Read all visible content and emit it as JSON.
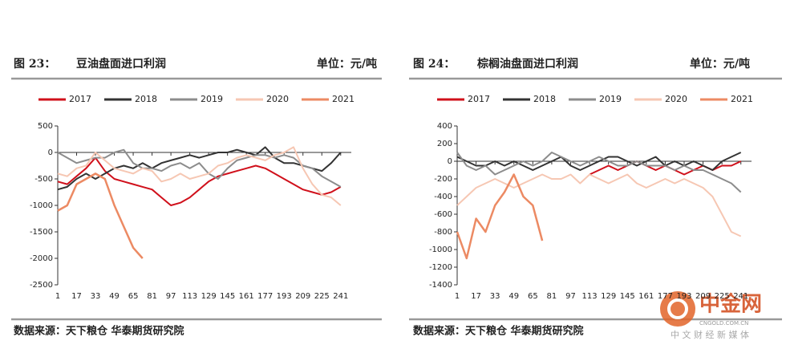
{
  "chart_data": [
    {
      "type": "line",
      "figure_label": "图 23：",
      "title": "豆油盘面进口利润",
      "unit": "单位：元/吨",
      "source": "数据来源：天下粮仓  华泰期货研究院",
      "x": [
        1,
        9,
        17,
        25,
        33,
        41,
        49,
        57,
        65,
        73,
        81,
        89,
        97,
        105,
        113,
        121,
        129,
        137,
        145,
        153,
        161,
        169,
        177,
        185,
        193,
        201,
        209,
        217,
        225,
        233,
        241,
        249
      ],
      "xlim": [
        1,
        250
      ],
      "xticks": [
        1,
        17,
        33,
        49,
        65,
        81,
        97,
        113,
        129,
        145,
        161,
        177,
        193,
        209,
        225,
        241
      ],
      "ylim": [
        -2500,
        500
      ],
      "yticks": [
        -2500,
        -2000,
        -1500,
        -1000,
        -500,
        0,
        500
      ],
      "series": [
        {
          "name": "2017",
          "color": "#d0101b",
          "values": [
            -550,
            -600,
            -450,
            -300,
            -100,
            -350,
            -500,
            -550,
            -600,
            -650,
            -700,
            -850,
            -1000,
            -950,
            -850,
            -700,
            -550,
            -450,
            -400,
            -350,
            -300,
            -250,
            -300,
            -400,
            -500,
            -600,
            -700,
            -750,
            -800,
            -750,
            -650,
            null
          ]
        },
        {
          "name": "2018",
          "color": "#333333",
          "values": [
            -700,
            -650,
            -500,
            -400,
            -500,
            -400,
            -300,
            -250,
            -300,
            -200,
            -300,
            -200,
            -150,
            -100,
            -50,
            -100,
            -50,
            0,
            0,
            50,
            0,
            -50,
            100,
            -100,
            -200,
            -200,
            -250,
            -300,
            -350,
            -200,
            0,
            null
          ]
        },
        {
          "name": "2019",
          "color": "#8c8c8c",
          "values": [
            0,
            -100,
            -200,
            -150,
            -100,
            -100,
            0,
            50,
            -200,
            -300,
            -300,
            -350,
            -250,
            -200,
            -300,
            -200,
            -400,
            -500,
            -300,
            -150,
            -100,
            -50,
            -50,
            -100,
            -50,
            -100,
            -250,
            -300,
            -450,
            -550,
            -650,
            null
          ]
        },
        {
          "name": "2020",
          "color": "#f6c7b3",
          "values": [
            -400,
            -450,
            -300,
            -250,
            0,
            -150,
            -300,
            -350,
            -400,
            -300,
            -350,
            -550,
            -500,
            -400,
            -500,
            -450,
            -400,
            -250,
            -200,
            -100,
            -50,
            -100,
            -150,
            -50,
            0,
            100,
            -300,
            -600,
            -800,
            -850,
            -1000,
            null
          ]
        },
        {
          "name": "2021",
          "color": "#ec8a63",
          "values": [
            -1100,
            -1000,
            -600,
            -500,
            -400,
            -500,
            -1000,
            -1400,
            -1800,
            -2000,
            null,
            null,
            null,
            null,
            null,
            null,
            null,
            null,
            null,
            null,
            null,
            null,
            null,
            null,
            null,
            null,
            null,
            null,
            null,
            null,
            null,
            null
          ]
        }
      ]
    },
    {
      "type": "line",
      "figure_label": "图 24：",
      "title": "棕榈油盘面进口利润",
      "unit": "单位：元/吨",
      "source": "数据来源：天下粮仓  华泰期货研究院",
      "x": [
        1,
        9,
        17,
        25,
        33,
        41,
        49,
        57,
        65,
        73,
        81,
        89,
        97,
        105,
        113,
        121,
        129,
        137,
        145,
        153,
        161,
        169,
        177,
        185,
        193,
        201,
        209,
        217,
        225,
        233,
        241,
        249
      ],
      "xlim": [
        1,
        250
      ],
      "xticks": [
        1,
        17,
        33,
        49,
        65,
        81,
        97,
        113,
        129,
        145,
        161,
        177,
        193,
        209,
        225,
        241
      ],
      "ylim": [
        -1400,
        400
      ],
      "yticks": [
        -1400,
        -1200,
        -1000,
        -800,
        -600,
        -400,
        -200,
        0,
        200,
        400
      ],
      "series": [
        {
          "name": "2017",
          "color": "#d0101b",
          "values": [
            null,
            null,
            null,
            null,
            null,
            null,
            null,
            null,
            null,
            null,
            null,
            null,
            null,
            null,
            -150,
            -100,
            -50,
            -100,
            -50,
            0,
            -50,
            -100,
            -50,
            -100,
            -150,
            -100,
            -50,
            -100,
            -50,
            -50,
            0,
            null
          ]
        },
        {
          "name": "2018",
          "color": "#333333",
          "values": [
            50,
            0,
            -50,
            -50,
            0,
            -50,
            0,
            -50,
            -100,
            -50,
            0,
            50,
            -50,
            -100,
            -50,
            0,
            50,
            50,
            0,
            -50,
            0,
            50,
            -50,
            0,
            -50,
            0,
            -50,
            -100,
            0,
            50,
            100,
            null
          ]
        },
        {
          "name": "2019",
          "color": "#8c8c8c",
          "values": [
            100,
            -50,
            -100,
            -50,
            -150,
            -100,
            -50,
            0,
            -50,
            0,
            100,
            50,
            0,
            -50,
            0,
            50,
            0,
            -50,
            -50,
            0,
            -50,
            -50,
            -50,
            -100,
            -50,
            -100,
            -100,
            -150,
            -200,
            -250,
            -350,
            null
          ]
        },
        {
          "name": "2020",
          "color": "#f6c7b3",
          "values": [
            -500,
            -400,
            -300,
            -250,
            -200,
            -250,
            -300,
            -250,
            -200,
            -150,
            -200,
            -200,
            -150,
            -250,
            -150,
            -200,
            -250,
            -200,
            -150,
            -250,
            -300,
            -250,
            -200,
            -250,
            -200,
            -250,
            -300,
            -400,
            -600,
            -800,
            -850,
            null
          ]
        },
        {
          "name": "2021",
          "color": "#ec8a63",
          "values": [
            -800,
            -1100,
            -650,
            -800,
            -500,
            -350,
            -150,
            -400,
            -500,
            -900,
            null,
            null,
            null,
            null,
            null,
            null,
            null,
            null,
            null,
            null,
            null,
            null,
            null,
            null,
            null,
            null,
            null,
            null,
            null,
            null,
            null,
            null
          ]
        }
      ]
    }
  ],
  "watermark": {
    "name": "中金网",
    "domain": "CNGOLD.COM.CN",
    "slogan": "中 文 财 经 新 媒 体"
  }
}
